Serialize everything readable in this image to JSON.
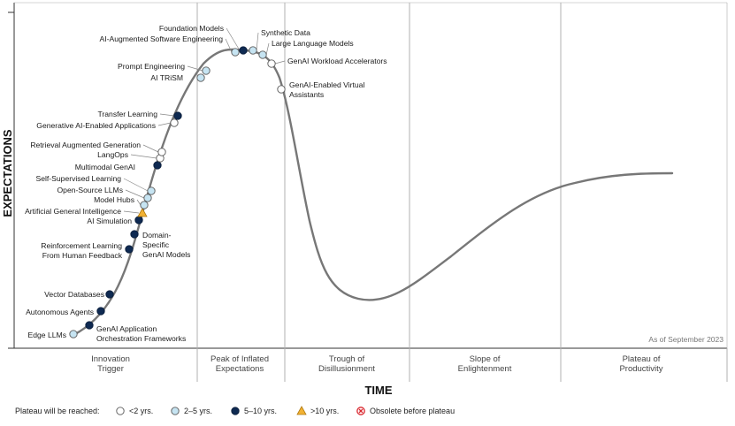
{
  "chart_data": {
    "type": "diagram",
    "y_axis_label": "EXPECTATIONS",
    "x_axis_label": "TIME",
    "as_of": "As of September 2023",
    "phases": [
      {
        "lines": [
          "Innovation",
          "Trigger"
        ]
      },
      {
        "lines": [
          "Peak of Inflated",
          "Expectations"
        ]
      },
      {
        "lines": [
          "Trough of",
          "Disillusionment"
        ]
      },
      {
        "lines": [
          "Slope of",
          "Enlightenment"
        ]
      },
      {
        "lines": [
          "Plateau of",
          "Productivity"
        ]
      }
    ],
    "legend": {
      "title": "Plateau will be reached:",
      "items": [
        {
          "key": "lt2",
          "label": "<2 yrs."
        },
        {
          "key": "2to5",
          "label": "2–5 yrs."
        },
        {
          "key": "5to10",
          "label": "5–10 yrs."
        },
        {
          "key": "gt10",
          "label": ">10 yrs."
        },
        {
          "key": "obsolete",
          "label": "Obsolete before plateau"
        }
      ]
    },
    "categories": {
      "lt2": "#ffffff",
      "2to5": "#c6e4f2",
      "5to10": "#0f2a52",
      "gt10": "#f2b233",
      "obsolete": "#d9262e"
    },
    "technologies": [
      {
        "name": [
          "Edge LLMs"
        ],
        "category": "2to5"
      },
      {
        "name": [
          "GenAI Application",
          "Orchestration Frameworks"
        ],
        "category": "5to10"
      },
      {
        "name": [
          "Autonomous Agents"
        ],
        "category": "5to10"
      },
      {
        "name": [
          "Vector Databases"
        ],
        "category": "5to10"
      },
      {
        "name": [
          "Reinforcement Learning",
          "From Human Feedback"
        ],
        "category": "5to10"
      },
      {
        "name": [
          "Domain-",
          "Specific",
          "GenAI Models"
        ],
        "category": "5to10"
      },
      {
        "name": [
          "AI Simulation"
        ],
        "category": "5to10"
      },
      {
        "name": [
          "Artificial General Intelligence"
        ],
        "category": "gt10"
      },
      {
        "name": [
          "Model Hubs"
        ],
        "category": "2to5"
      },
      {
        "name": [
          "Open-Source LLMs"
        ],
        "category": "2to5"
      },
      {
        "name": [
          "Self-Supervised Learning"
        ],
        "category": "2to5"
      },
      {
        "name": [
          "Multimodal GenAI"
        ],
        "category": "5to10"
      },
      {
        "name": [
          "LangOps"
        ],
        "category": "lt2"
      },
      {
        "name": [
          "Retrieval Augmented Generation"
        ],
        "category": "lt2"
      },
      {
        "name": [
          "Generative AI-Enabled Applications"
        ],
        "category": "lt2"
      },
      {
        "name": [
          "Transfer Learning"
        ],
        "category": "5to10"
      },
      {
        "name": [
          "AI TRiSM"
        ],
        "category": "2to5"
      },
      {
        "name": [
          "Prompt Engineering"
        ],
        "category": "2to5"
      },
      {
        "name": [
          "AI-Augmented Software Engineering"
        ],
        "category": "2to5"
      },
      {
        "name": [
          "Foundation Models"
        ],
        "category": "5to10"
      },
      {
        "name": [
          "Synthetic Data"
        ],
        "category": "2to5"
      },
      {
        "name": [
          "Large Language Models"
        ],
        "category": "2to5"
      },
      {
        "name": [
          "GenAI Workload Accelerators"
        ],
        "category": "lt2"
      },
      {
        "name": [
          "GenAI-Enabled Virtual",
          "Assistants"
        ],
        "category": "lt2"
      }
    ]
  }
}
